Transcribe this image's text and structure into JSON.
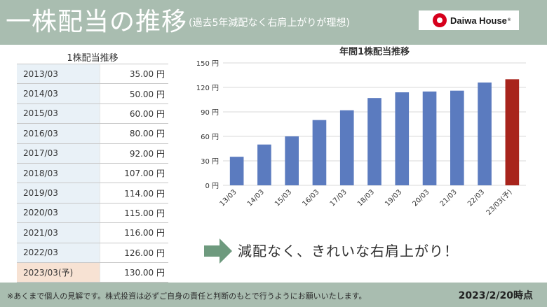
{
  "header": {
    "title": "一株配当の推移",
    "subtitle": "(過去5年減配なく右肩上がりが理想)",
    "logo_text": "Daiwa House",
    "logo_reg": "®"
  },
  "table": {
    "title": "1株配当推移",
    "rows": [
      {
        "year": "2013/03",
        "value": "35.00 円"
      },
      {
        "year": "2014/03",
        "value": "50.00 円"
      },
      {
        "year": "2015/03",
        "value": "60.00 円"
      },
      {
        "year": "2016/03",
        "value": "80.00 円"
      },
      {
        "year": "2017/03",
        "value": "92.00 円"
      },
      {
        "year": "2018/03",
        "value": "107.00 円"
      },
      {
        "year": "2019/03",
        "value": "114.00 円"
      },
      {
        "year": "2020/03",
        "value": "115.00 円"
      },
      {
        "year": "2021/03",
        "value": "116.00 円"
      },
      {
        "year": "2022/03",
        "value": "126.00 円"
      },
      {
        "year": "2023/03(予)",
        "value": "130.00 円"
      }
    ]
  },
  "chart_data": {
    "type": "bar",
    "title": "年間1株配当推移",
    "categories": [
      "13/03",
      "14/03",
      "15/03",
      "16/03",
      "17/03",
      "18/03",
      "19/03",
      "20/03",
      "21/03",
      "22/03",
      "23/03(予)"
    ],
    "values": [
      35,
      50,
      60,
      80,
      92,
      107,
      114,
      115,
      116,
      126,
      130
    ],
    "ylim": [
      0,
      150
    ],
    "yticks": [
      0,
      30,
      60,
      90,
      120,
      150
    ],
    "ytick_labels": [
      "0 円",
      "30 円",
      "60 円",
      "90 円",
      "120 円",
      "150 円"
    ],
    "grid": true,
    "colors": {
      "actual": "#5b7bbf",
      "forecast": "#a8241c"
    }
  },
  "message": {
    "text": "減配なく、きれいな右肩上がり！",
    "arrow_color": "#6e9a7e"
  },
  "footer": {
    "disclaimer": "※あくまで個人の見解です。株式投資は必ずご自身の責任と判断のもとで行うようにお願いいたします。",
    "as_of": "2023/2/20時点"
  },
  "colors": {
    "band": "#a9bdb0",
    "logo_red": "#d6001c",
    "year_cell": "#e9f1f7",
    "forecast_cell": "#f7e2d3"
  }
}
